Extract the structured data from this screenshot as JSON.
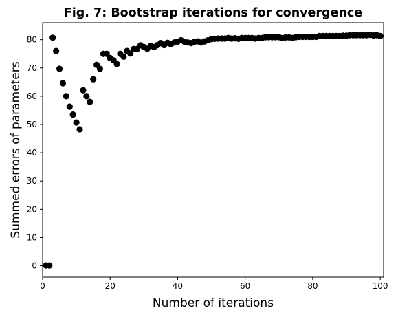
{
  "chart_data": {
    "type": "scatter",
    "title": "Fig. 7: Bootstrap iterations for convergence",
    "xlabel": "Number of iterations",
    "ylabel": "Summed errors of parameters",
    "xlim": [
      0,
      101
    ],
    "ylim": [
      -4,
      86
    ],
    "xticks": [
      0,
      20,
      40,
      60,
      80,
      100
    ],
    "yticks": [
      0,
      10,
      20,
      30,
      40,
      50,
      60,
      70,
      80
    ],
    "grid": false,
    "marker_color": "#000000",
    "series": [
      {
        "x": [
          1,
          2,
          3,
          4,
          5,
          6,
          7,
          8,
          9,
          10,
          11,
          12,
          13,
          14,
          15,
          16,
          17,
          18,
          19,
          20,
          21,
          22,
          23,
          24,
          25,
          26,
          27,
          28,
          29,
          30,
          31,
          32,
          33,
          34,
          35,
          36,
          37,
          38,
          39,
          40,
          41,
          42,
          43,
          44,
          45,
          46,
          47,
          48,
          49,
          50,
          51,
          52,
          53,
          54,
          55,
          56,
          57,
          58,
          59,
          60,
          61,
          62,
          63,
          64,
          65,
          66,
          67,
          68,
          69,
          70,
          71,
          72,
          73,
          74,
          75,
          76,
          77,
          78,
          79,
          80,
          81,
          82,
          83,
          84,
          85,
          86,
          87,
          88,
          89,
          90,
          91,
          92,
          93,
          94,
          95,
          96,
          97,
          98,
          99,
          100
        ],
        "y": [
          0.1,
          0.1,
          80.7,
          76.0,
          69.7,
          64.6,
          60.0,
          56.3,
          53.5,
          50.7,
          48.3,
          62.1,
          60.0,
          58.0,
          66.0,
          71.1,
          69.7,
          75.0,
          75.0,
          73.5,
          72.7,
          71.4,
          75.0,
          74.0,
          76.0,
          75.1,
          76.7,
          76.7,
          78.0,
          77.4,
          76.8,
          77.8,
          77.4,
          78.1,
          78.8,
          78.1,
          78.9,
          78.4,
          79.0,
          79.3,
          79.8,
          79.3,
          79.0,
          78.8,
          79.3,
          79.4,
          79.0,
          79.4,
          79.8,
          80.2,
          80.3,
          80.4,
          80.4,
          80.4,
          80.6,
          80.4,
          80.5,
          80.3,
          80.6,
          80.6,
          80.6,
          80.6,
          80.4,
          80.6,
          80.6,
          80.9,
          80.9,
          80.9,
          80.9,
          80.9,
          80.6,
          80.8,
          80.8,
          80.6,
          80.9,
          81.0,
          81.0,
          81.0,
          81.0,
          81.0,
          81.0,
          81.3,
          81.3,
          81.3,
          81.3,
          81.3,
          81.3,
          81.3,
          81.4,
          81.4,
          81.6,
          81.6,
          81.6,
          81.6,
          81.6,
          81.6,
          81.7,
          81.5,
          81.6,
          81.3
        ]
      }
    ]
  }
}
